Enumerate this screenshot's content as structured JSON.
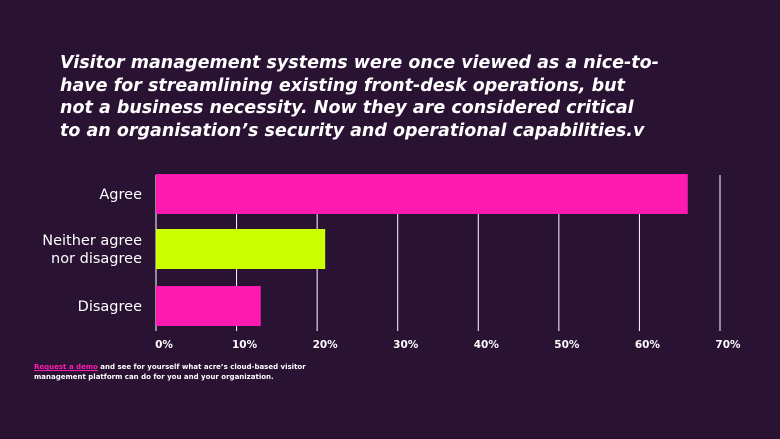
{
  "colors": {
    "background": "#2a1233",
    "agree": "#ff1ab0",
    "neither": "#ccff00",
    "disagree": "#ff1ab0",
    "gridline": "#ffffff",
    "link": "#ff1ab0"
  },
  "chart_data": {
    "type": "bar",
    "orientation": "horizontal",
    "title": "Visitor management systems were once viewed as a nice-to-have for streamlining existing front-desk operations, but not a business necessity. Now they are considered critical to an organisation’s security and operational capabilities.v",
    "categories": [
      [
        "Agree"
      ],
      [
        "Neither agree",
        "nor disagree"
      ],
      [
        "Disagree"
      ]
    ],
    "values": [
      66,
      21,
      13
    ],
    "bar_colors": [
      "#ff1ab0",
      "#ccff00",
      "#ff1ab0"
    ],
    "xlim": [
      0,
      70
    ],
    "xticks": [
      0,
      10,
      20,
      30,
      40,
      50,
      60,
      70
    ],
    "xtick_labels": [
      "0%",
      "10%",
      "20%",
      "30%",
      "40%",
      "50%",
      "60%",
      "70%"
    ],
    "grid": true,
    "xlabel": "",
    "ylabel": ""
  },
  "footer": {
    "link_text": "Request a demo",
    "text": " and see for yourself what acre’s cloud-based visitor management platform can do for you and your organization."
  }
}
